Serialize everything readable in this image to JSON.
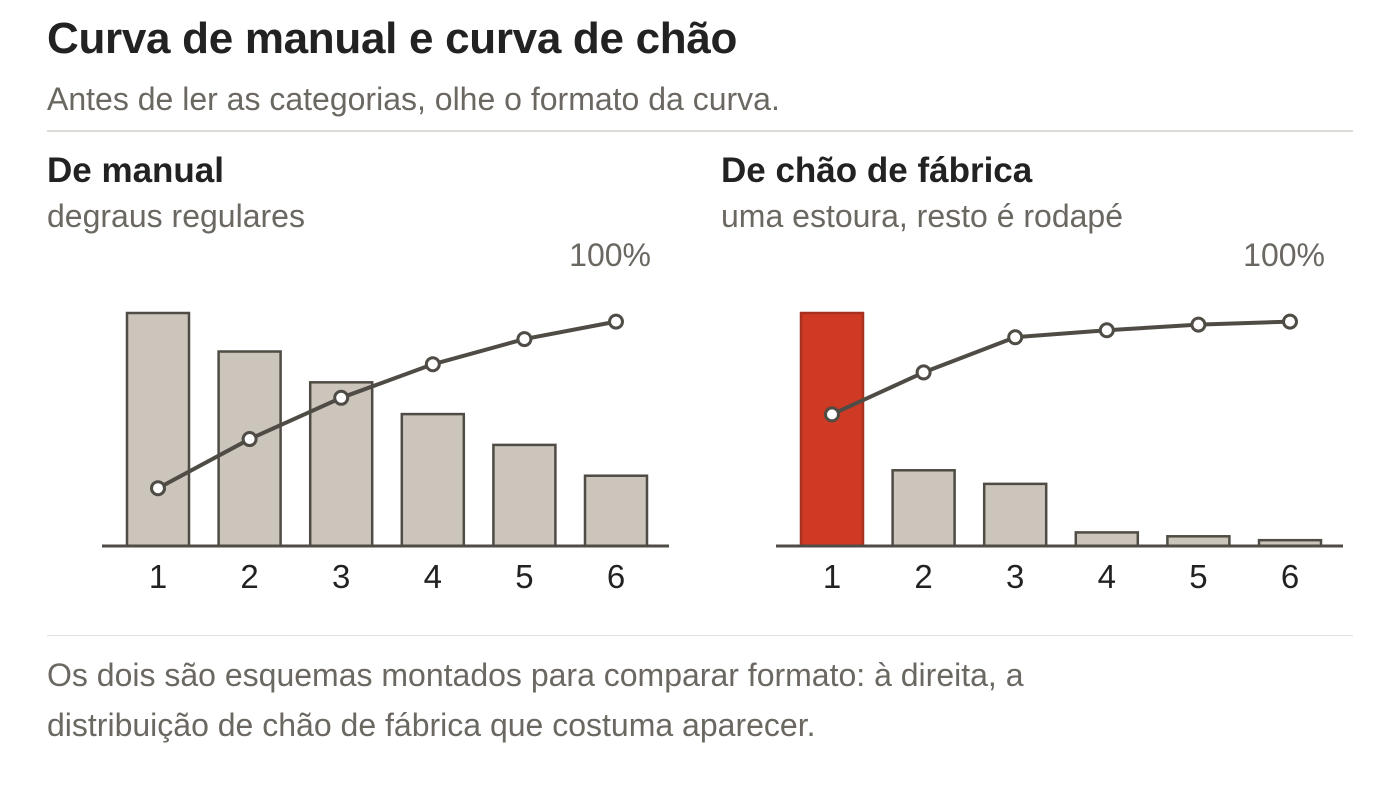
{
  "header": {
    "title": "Curva de manual e curva de chão",
    "subtitle": "Antes de ler as categorias, olhe o formato da curva."
  },
  "footnote": {
    "line1": "Os dois são esquemas montados para comparar formato: à direita, a",
    "line2": "distribuição de chão de fábrica que costuma aparecer."
  },
  "colors": {
    "bar": "#cbc5bb",
    "bar_stroke": "#4f4b45",
    "highlight": "#cf3a25",
    "highlight_stroke": "#a8301f",
    "line": "#4f4b45",
    "marker_fill": "#ffffff"
  },
  "chart_data": [
    {
      "type": "bar",
      "title": "De manual",
      "subtitle": "degraus regulares",
      "cumulative_label": "100%",
      "categories": [
        "1",
        "2",
        "3",
        "4",
        "5",
        "6"
      ],
      "values": [
        24.2,
        20.2,
        17.0,
        13.7,
        10.5,
        7.3
      ],
      "cumulative": [
        24.8,
        45.9,
        63.6,
        78.0,
        88.8,
        96.3
      ],
      "ylim": [
        0,
        24.2
      ],
      "cumulative_ylim": [
        0,
        100
      ],
      "highlight_index": null,
      "grid": false,
      "legend": "none"
    },
    {
      "type": "bar",
      "title": "De chão de fábrica",
      "subtitle": "uma estoura, resto é rodapé",
      "cumulative_label": "100%",
      "categories": [
        "1",
        "2",
        "3",
        "4",
        "5",
        "6"
      ],
      "values": [
        60.0,
        19.5,
        16.0,
        3.5,
        2.5,
        1.5
      ],
      "cumulative": [
        56.5,
        74.5,
        89.6,
        92.6,
        95.0,
        96.3
      ],
      "ylim": [
        0,
        60.0
      ],
      "cumulative_ylim": [
        0,
        100
      ],
      "highlight_index": 0,
      "grid": false,
      "legend": "none"
    }
  ]
}
